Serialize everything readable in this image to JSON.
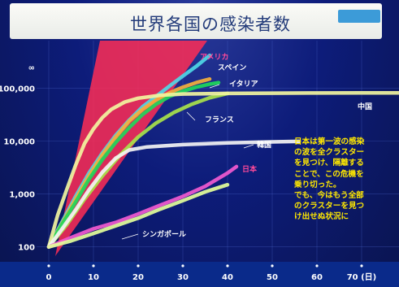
{
  "slide": {
    "title": "世界各国の感染者数",
    "title_small": "",
    "badge": "",
    "note": "日本は第一波の感染\nの波を全クラスター\nを見つけ、隔離する\nことで、この危機を\n乗り切った。\nでも、今はもう全部\nのクラスターを見つ\nけ出せぬ状況に",
    "colors": {
      "background": "#0d1c7a",
      "axis_band": "#0a2a8a",
      "danger_zone": "#ff2d55",
      "note_text": "#ffe800"
    }
  },
  "chart_data": {
    "type": "line",
    "title": "世界各国の感染者数",
    "xlabel": "",
    "ylabel": "",
    "y_scale": "log",
    "xlim": [
      0,
      80
    ],
    "ylim": [
      80,
      600000
    ],
    "x_ticks": [
      "0",
      "10",
      "20",
      "30",
      "40",
      "50",
      "60",
      "70 (日)"
    ],
    "x_tick_values": [
      0,
      10,
      20,
      30,
      40,
      50,
      60,
      70
    ],
    "y_ticks": [
      "100",
      "1,000",
      "10,000",
      "100,000",
      "∞"
    ],
    "y_tick_values": [
      100,
      1000,
      10000,
      100000,
      250000
    ],
    "grid": true,
    "series": [
      {
        "name": "アメリカ",
        "color": "#4fd8e6",
        "x": [
          0,
          3,
          6,
          9,
          12,
          15,
          18,
          21,
          24,
          27,
          30,
          33,
          36
        ],
        "y": [
          100,
          300,
          900,
          2500,
          6000,
          13000,
          25000,
          45000,
          70000,
          110000,
          170000,
          260000,
          420000
        ]
      },
      {
        "name": "スペイン",
        "color": "#f5b03c",
        "x": [
          0,
          3,
          6,
          9,
          12,
          15,
          18,
          21,
          24,
          27,
          30,
          33,
          36
        ],
        "y": [
          100,
          280,
          800,
          2200,
          5500,
          12000,
          24000,
          40000,
          60000,
          82000,
          105000,
          128000,
          150000
        ]
      },
      {
        "name": "イタリア",
        "color": "#1fd85a",
        "x": [
          0,
          3,
          6,
          9,
          12,
          15,
          18,
          21,
          24,
          27,
          30,
          33,
          36,
          38
        ],
        "y": [
          100,
          270,
          700,
          1900,
          4500,
          9500,
          18000,
          32000,
          50000,
          70000,
          88000,
          105000,
          120000,
          128000
        ]
      },
      {
        "name": "フランス",
        "color": "#a8e24a",
        "x": [
          0,
          4,
          8,
          12,
          16,
          20,
          24,
          28,
          32,
          36,
          40
        ],
        "y": [
          100,
          260,
          800,
          2200,
          5500,
          12000,
          22000,
          35000,
          50000,
          66000,
          80000
        ]
      },
      {
        "name": "中国",
        "color": "#f2f5a0",
        "x": [
          0,
          2,
          4,
          6,
          8,
          10,
          12,
          14,
          17,
          20,
          25,
          30,
          40,
          50,
          60,
          70,
          80
        ],
        "y": [
          100,
          400,
          1200,
          3500,
          9000,
          17000,
          28000,
          40000,
          55000,
          65000,
          74000,
          78000,
          80000,
          81000,
          81500,
          82000,
          82000
        ]
      },
      {
        "name": "韓国",
        "color": "#f4f4f4",
        "x": [
          0,
          3,
          6,
          9,
          12,
          15,
          18,
          22,
          30,
          40,
          50,
          56
        ],
        "y": [
          100,
          220,
          500,
          1200,
          2600,
          4800,
          6800,
          7800,
          8600,
          9300,
          9700,
          9900
        ]
      },
      {
        "name": "日本",
        "color": "#f25ad0",
        "x": [
          0,
          5,
          10,
          15,
          20,
          25,
          30,
          35,
          40,
          42
        ],
        "y": [
          100,
          150,
          220,
          290,
          420,
          620,
          900,
          1400,
          2500,
          3300
        ]
      },
      {
        "name": "シンガポール",
        "color": "#e4ff9a",
        "x": [
          0,
          5,
          10,
          15,
          20,
          25,
          30,
          35,
          40
        ],
        "y": [
          100,
          130,
          180,
          250,
          350,
          520,
          750,
          1100,
          1500
        ]
      }
    ],
    "labels": {
      "america": "アメリカ",
      "spain": "スペイン",
      "italy": "イタリア",
      "france": "フランス",
      "china": "中国",
      "korea": "韓国",
      "japan": "日本",
      "singapore": "シンガポール"
    },
    "danger_zone": {
      "x_at_bottom": [
        0,
        0
      ],
      "description": ""
    }
  }
}
